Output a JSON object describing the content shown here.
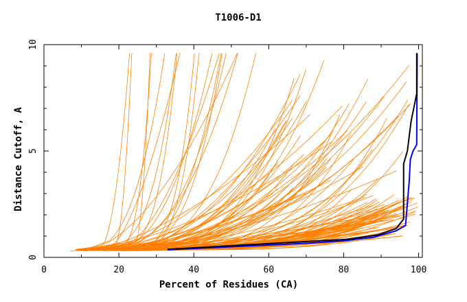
{
  "chart_data": {
    "type": "line",
    "title": "T1006-D1",
    "xlabel": "Percent of Residues (CA)",
    "ylabel": "Distance Cutoff, A",
    "xlim": [
      0,
      101
    ],
    "ylim": [
      0,
      10
    ],
    "x_ticks": [
      0,
      20,
      40,
      60,
      80,
      100
    ],
    "y_ticks": [
      0,
      5,
      10
    ],
    "grid": false,
    "legend": "none",
    "colors": {
      "models": "#ff8000",
      "highlight_black": "#000000",
      "highlight_blue": "#0000ff",
      "axis": "#000000"
    },
    "highlight_series": [
      {
        "color": "#0000ff",
        "x": [
          33,
          40,
          50,
          60,
          70,
          80,
          88,
          94,
          96.5,
          97.5,
          97.8,
          98.5,
          99.5,
          99.6
        ],
        "y": [
          0.35,
          0.42,
          0.5,
          0.58,
          0.66,
          0.78,
          0.95,
          1.25,
          1.5,
          3.6,
          4.6,
          5.0,
          5.3,
          9.6
        ]
      },
      {
        "color": "#000000",
        "x": [
          33,
          45,
          60,
          81,
          89,
          94,
          96,
          96,
          97,
          98,
          99.5,
          99.5
        ],
        "y": [
          0.38,
          0.5,
          0.65,
          0.85,
          1.05,
          1.35,
          1.8,
          4.4,
          5.0,
          6.4,
          7.7,
          9.6
        ]
      }
    ],
    "model_series_families": [
      {
        "name": "",
        "count": 60,
        "start_x": [
          6,
          30
        ],
        "end_x": [
          85,
          100
        ],
        "start_y": 0.3,
        "end_y": [
          1.0,
          3.0
        ]
      },
      {
        "name": "",
        "count": 50,
        "start_x": [
          8,
          28
        ],
        "end_x": [
          60,
          99
        ],
        "start_y": 0.3,
        "end_y": [
          3.0,
          9.6
        ]
      },
      {
        "name": "",
        "count": 18,
        "start_x": [
          10,
          24
        ],
        "end_x": [
          20,
          60
        ],
        "start_y": 0.3,
        "end_y": [
          9.6,
          9.6
        ]
      }
    ]
  }
}
